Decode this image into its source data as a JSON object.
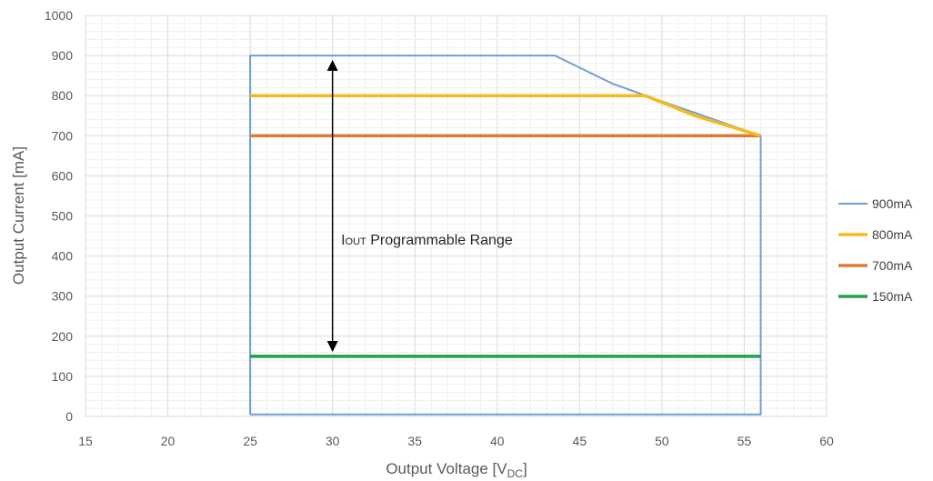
{
  "chart_data": {
    "type": "line",
    "xlabel": "Output Voltage [V",
    "xlabel_sub": "DC",
    "xlabel_tail": "]",
    "ylabel": "Output Current [mA]",
    "xlim": [
      15,
      60
    ],
    "ylim": [
      0,
      1000
    ],
    "x_ticks": [
      15,
      20,
      25,
      30,
      35,
      40,
      45,
      50,
      55,
      60
    ],
    "y_ticks": [
      0,
      100,
      200,
      300,
      400,
      500,
      600,
      700,
      800,
      900,
      1000
    ],
    "grid": true,
    "legend_position": "right",
    "series": [
      {
        "name": "900mA",
        "color": "#6d9fd2",
        "width": 2,
        "x": [
          25,
          25,
          43.5,
          47,
          49,
          56,
          56,
          25
        ],
        "y": [
          5,
          900,
          900,
          830,
          800,
          700,
          5,
          5
        ]
      },
      {
        "name": "800mA",
        "color": "#f4bb1f",
        "width": 3.5,
        "x": [
          25,
          49,
          52,
          56
        ],
        "y": [
          800,
          800,
          750,
          700
        ]
      },
      {
        "name": "700mA",
        "color": "#e07a34",
        "width": 3.5,
        "x": [
          25,
          56
        ],
        "y": [
          700,
          700
        ]
      },
      {
        "name": "150mA",
        "color": "#1fa24a",
        "width": 3.5,
        "x": [
          25,
          56
        ],
        "y": [
          150,
          150
        ]
      }
    ],
    "annotation": {
      "text_prefix": "I",
      "text_sub": "OUT",
      "text_suffix": " Programmable Range",
      "arrow_x": 30,
      "arrow_y_from": 150,
      "arrow_y_to": 900,
      "label_x": 30.3,
      "label_y": 420
    }
  }
}
